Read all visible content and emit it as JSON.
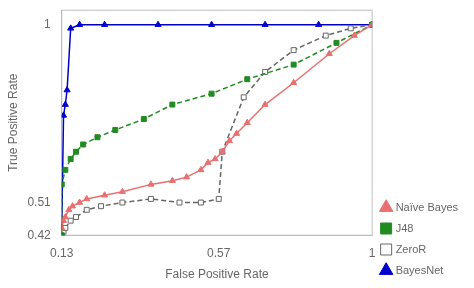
{
  "chart_data": {
    "type": "line",
    "xlabel": "False Positive Rate",
    "ylabel": "True Positive Rate",
    "xlim": [
      0.13,
      1.0
    ],
    "ylim": [
      0.42,
      1.04
    ],
    "xticks": [
      0.13,
      0.57,
      1
    ],
    "yticks": [
      0.42,
      0.51,
      1
    ],
    "grid": false,
    "legend": "lower right",
    "series": [
      {
        "name": "Naïve Bayes",
        "color": "#E87070",
        "marker": "triangle",
        "line_style": "solid",
        "x": [
          0.13,
          0.135,
          0.14,
          0.15,
          0.16,
          0.18,
          0.2,
          0.25,
          0.3,
          0.38,
          0.44,
          0.48,
          0.52,
          0.54,
          0.56,
          0.58,
          0.6,
          0.62,
          0.65,
          0.7,
          0.78,
          0.88,
          0.95,
          1.0
        ],
        "values": [
          0.44,
          0.46,
          0.47,
          0.49,
          0.5,
          0.51,
          0.52,
          0.53,
          0.54,
          0.56,
          0.57,
          0.58,
          0.6,
          0.62,
          0.63,
          0.65,
          0.68,
          0.7,
          0.73,
          0.78,
          0.84,
          0.92,
          0.97,
          1.0
        ]
      },
      {
        "name": "J48",
        "color": "#228B22",
        "marker": "square",
        "line_style": "dashed",
        "x": [
          0.13,
          0.13,
          0.14,
          0.155,
          0.17,
          0.19,
          0.23,
          0.28,
          0.36,
          0.44,
          0.55,
          0.65,
          0.78,
          0.9,
          1.0
        ],
        "values": [
          0.42,
          0.56,
          0.6,
          0.63,
          0.65,
          0.67,
          0.69,
          0.71,
          0.74,
          0.78,
          0.81,
          0.85,
          0.89,
          0.95,
          1.0
        ]
      },
      {
        "name": "ZeroR",
        "color": "#666666",
        "marker": "open_square",
        "line_style": "dashed",
        "x": [
          0.13,
          0.135,
          0.14,
          0.155,
          0.17,
          0.2,
          0.24,
          0.3,
          0.38,
          0.46,
          0.52,
          0.57,
          0.58,
          0.64,
          0.7,
          0.78,
          0.87,
          0.94,
          1.0
        ],
        "values": [
          0.42,
          0.43,
          0.44,
          0.46,
          0.47,
          0.49,
          0.5,
          0.51,
          0.52,
          0.51,
          0.51,
          0.52,
          0.65,
          0.8,
          0.87,
          0.93,
          0.97,
          0.99,
          1.0
        ]
      },
      {
        "name": "BayesNet",
        "color": "#0000CC",
        "marker": "triangle",
        "line_style": "solid",
        "x": [
          0.13,
          0.13,
          0.135,
          0.14,
          0.145,
          0.155,
          0.18,
          0.25,
          0.4,
          0.55,
          0.7,
          0.85,
          1.0
        ],
        "values": [
          0.42,
          0.44,
          0.75,
          0.78,
          0.82,
          0.99,
          1.0,
          1.0,
          1.0,
          1.0,
          1.0,
          1.0,
          1.0
        ]
      }
    ]
  }
}
